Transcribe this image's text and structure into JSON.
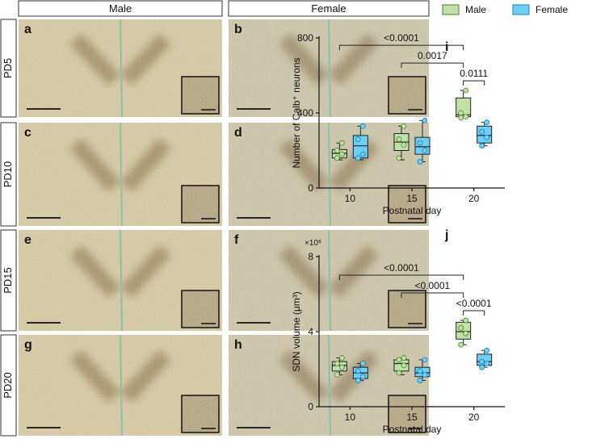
{
  "columns": [
    "Male",
    "Female"
  ],
  "rows": [
    "PD5",
    "PD10",
    "PD15",
    "PD20"
  ],
  "panels": [
    "a",
    "b",
    "c",
    "d",
    "e",
    "f",
    "g",
    "h"
  ],
  "chart_data": [
    {
      "type": "box",
      "panel": "i",
      "ylabel": "Number of Calb⁺ neurons",
      "xlabel": "Postnatal day",
      "categories": [
        "10",
        "15",
        "20"
      ],
      "ylim": [
        0,
        800
      ],
      "yticks": [
        0,
        400,
        800
      ],
      "legend": "top",
      "series": [
        {
          "name": "Male",
          "color": "#bfe0a7",
          "values": [
            {
              "min": 150,
              "q1": 160,
              "median": 185,
              "q3": 205,
              "max": 240,
              "points": [
                160,
                180,
                200,
                240
              ]
            },
            {
              "min": 150,
              "q1": 200,
              "median": 245,
              "q3": 290,
              "max": 330,
              "points": [
                160,
                230,
                260,
                330
              ]
            },
            {
              "min": 375,
              "q1": 380,
              "median": 390,
              "q3": 480,
              "max": 520,
              "points": [
                375,
                380,
                400,
                520
              ]
            }
          ]
        },
        {
          "name": "Female",
          "color": "#6ccff6",
          "values": [
            {
              "min": 150,
              "q1": 160,
              "median": 225,
              "q3": 280,
              "max": 330,
              "points": [
                160,
                180,
                260,
                330
              ]
            },
            {
              "min": 140,
              "q1": 180,
              "median": 220,
              "q3": 270,
              "max": 360,
              "points": [
                140,
                200,
                240,
                360
              ]
            },
            {
              "min": 225,
              "q1": 240,
              "median": 280,
              "q3": 330,
              "max": 350,
              "points": [
                225,
                270,
                300,
                350
              ]
            }
          ]
        }
      ],
      "annotations": [
        {
          "label": "0.0017",
          "from": [
            1,
            0
          ],
          "to": [
            2,
            0
          ]
        },
        {
          "label": "<0.0001",
          "from": [
            0,
            0
          ],
          "to": [
            2,
            0
          ]
        },
        {
          "label": "0.0111",
          "from": [
            2,
            0
          ],
          "to": [
            2,
            1
          ]
        }
      ]
    },
    {
      "type": "box",
      "panel": "j",
      "ylabel": "SDN volume (μm³)",
      "ylabel_multiplier": "×10⁶",
      "xlabel": "Postnatal day",
      "categories": [
        "10",
        "15",
        "20"
      ],
      "ylim": [
        0,
        8
      ],
      "yticks": [
        0,
        4,
        8
      ],
      "series": [
        {
          "color": "#bfe0a7",
          "values": [
            {
              "min": 1.7,
              "q1": 1.9,
              "median": 2.2,
              "q3": 2.4,
              "max": 2.6,
              "points": [
                1.7,
                2.1,
                2.3,
                2.6
              ]
            },
            {
              "min": 1.7,
              "q1": 1.9,
              "median": 2.3,
              "q3": 2.5,
              "max": 2.6,
              "points": [
                1.8,
                2.2,
                2.5,
                2.6
              ]
            },
            {
              "min": 3.3,
              "q1": 3.6,
              "median": 4.0,
              "q3": 4.5,
              "max": 4.6,
              "points": [
                3.3,
                3.9,
                4.2,
                4.6
              ]
            }
          ]
        },
        {
          "color": "#6ccff6",
          "values": [
            {
              "min": 1.4,
              "q1": 1.5,
              "median": 1.8,
              "q3": 2.1,
              "max": 2.3,
              "points": [
                1.4,
                1.6,
                1.9,
                2.3
              ]
            },
            {
              "min": 1.4,
              "q1": 1.6,
              "median": 1.8,
              "q3": 2.1,
              "max": 2.5,
              "points": [
                1.4,
                1.7,
                1.9,
                2.5
              ]
            },
            {
              "min": 2.1,
              "q1": 2.2,
              "median": 2.4,
              "q3": 2.8,
              "max": 3.0,
              "points": [
                2.1,
                2.3,
                2.4,
                3.0
              ]
            }
          ]
        }
      ],
      "annotations": [
        {
          "label": "<0.0001",
          "from": [
            1,
            0
          ],
          "to": [
            2,
            0
          ]
        },
        {
          "label": "<0.0001",
          "from": [
            0,
            0
          ],
          "to": [
            2,
            0
          ]
        },
        {
          "label": "<0.0001",
          "from": [
            2,
            0
          ],
          "to": [
            2,
            1
          ]
        }
      ]
    }
  ]
}
